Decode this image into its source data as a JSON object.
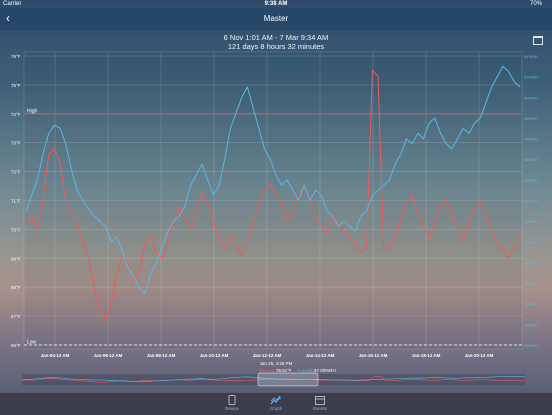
{
  "status": {
    "carrier": "Carrier",
    "time": "9:38 AM",
    "battery": "70%"
  },
  "nav": {
    "back": "‹",
    "title": "Master"
  },
  "range": {
    "dates": "6 Nov 1:01 AM - 7 Mar 9:34 AM",
    "duration": "121 days 8 hours 32 minutes"
  },
  "chart_data": {
    "type": "line",
    "y_left_ticks": [
      "76°F",
      "75°F",
      "74°F",
      "73°F",
      "72°F",
      "71°F",
      "70°F",
      "69°F",
      "68°F",
      "67°F",
      "66°F"
    ],
    "y_left_range": [
      66,
      76
    ],
    "y_right_ticks": [
      "54%RH",
      "52%RH",
      "50%RH",
      "48%RH",
      "46%RH",
      "44%RH",
      "42%RH",
      "40%RH",
      "38%RH",
      "36%RH",
      "34%RH",
      "32%RH",
      "30%RH",
      "28%RH",
      "26%RH"
    ],
    "y_right_range": [
      26,
      54
    ],
    "x_ticks": [
      "Jan-04-12 AM",
      "Jan-06-12 AM",
      "Jan-08-12 AM",
      "Jan-10-12 AM",
      "Jan-12-12 AM",
      "Jan-14-12 AM",
      "Jan-16-12 AM",
      "Jan-18-12 AM",
      "Jan-20-12 AM"
    ],
    "high": {
      "label": "High",
      "value": 74
    },
    "low": {
      "label": "Low",
      "value": 66
    },
    "cursor": {
      "date": "Jan 15, 4:28 PM",
      "temp_label": "Temperature:",
      "temp_value": "75.51°F",
      "hum_label": "Humidity:",
      "hum_value": "37.00%RH"
    },
    "series": [
      {
        "name": "Temperature",
        "color": "#f05a5a",
        "axis": "left",
        "values": [
          70.2,
          70.5,
          70.0,
          71.0,
          72.6,
          72.8,
          72.3,
          71.0,
          70.5,
          70.3,
          69.5,
          69.0,
          68.0,
          67.2,
          66.8,
          67.5,
          68.4,
          69.2,
          68.8,
          68.2,
          68.6,
          69.5,
          69.8,
          69.2,
          69.0,
          69.6,
          70.2,
          70.8,
          70.4,
          70.0,
          70.6,
          71.3,
          70.9,
          70.3,
          69.6,
          69.3,
          69.8,
          69.4,
          69.1,
          69.6,
          70.2,
          70.9,
          71.3,
          71.6,
          71.2,
          70.9,
          70.3,
          70.6,
          71.2,
          71.5,
          71.1,
          70.4,
          70.1,
          69.8,
          70.5,
          70.2,
          69.9,
          69.7,
          69.5,
          69.2,
          69.4,
          75.5,
          75.3,
          69.3,
          69.4,
          69.8,
          70.4,
          70.9,
          71.2,
          70.6,
          70.1,
          69.7,
          70.2,
          70.8,
          71.0,
          70.5,
          70.0,
          69.6,
          70.2,
          70.7,
          71.0,
          70.5,
          69.9,
          69.5,
          69.3,
          69.0,
          69.4,
          69.8
        ]
      },
      {
        "name": "Humidity",
        "color": "#5ab8e8",
        "axis": "right",
        "values": [
          39.0,
          40.5,
          42.0,
          44.5,
          46.5,
          47.3,
          47.0,
          45.5,
          43.0,
          41.0,
          40.0,
          39.2,
          38.5,
          38.0,
          37.5,
          36.0,
          36.5,
          35.0,
          33.5,
          32.5,
          31.5,
          31.0,
          33.0,
          34.0,
          35.5,
          37.0,
          38.0,
          38.5,
          39.5,
          41.5,
          42.5,
          43.5,
          42.0,
          40.5,
          41.5,
          44.0,
          47.0,
          48.5,
          50.0,
          51.0,
          49.0,
          47.0,
          45.0,
          44.0,
          42.5,
          41.5,
          42.0,
          41.0,
          40.0,
          41.5,
          40.0,
          41.0,
          40.5,
          39.0,
          38.5,
          37.5,
          38.0,
          37.5,
          37.0,
          38.5,
          39.0,
          40.5,
          41.0,
          41.5,
          42.0,
          43.5,
          44.5,
          46.0,
          45.5,
          46.5,
          46.0,
          47.5,
          48.0,
          46.5,
          45.5,
          45.0,
          46.0,
          47.0,
          46.5,
          47.5,
          48.0,
          49.5,
          51.0,
          52.0,
          53.0,
          52.5,
          51.5,
          51.0
        ]
      }
    ],
    "high_color": "#f05a5a",
    "low_color": "#ffffff"
  },
  "tabs": [
    {
      "label": "Device",
      "icon": "device-icon",
      "active": false
    },
    {
      "label": "Graph",
      "icon": "graph-icon",
      "active": true
    },
    {
      "label": "Events",
      "icon": "events-icon",
      "active": false
    }
  ]
}
